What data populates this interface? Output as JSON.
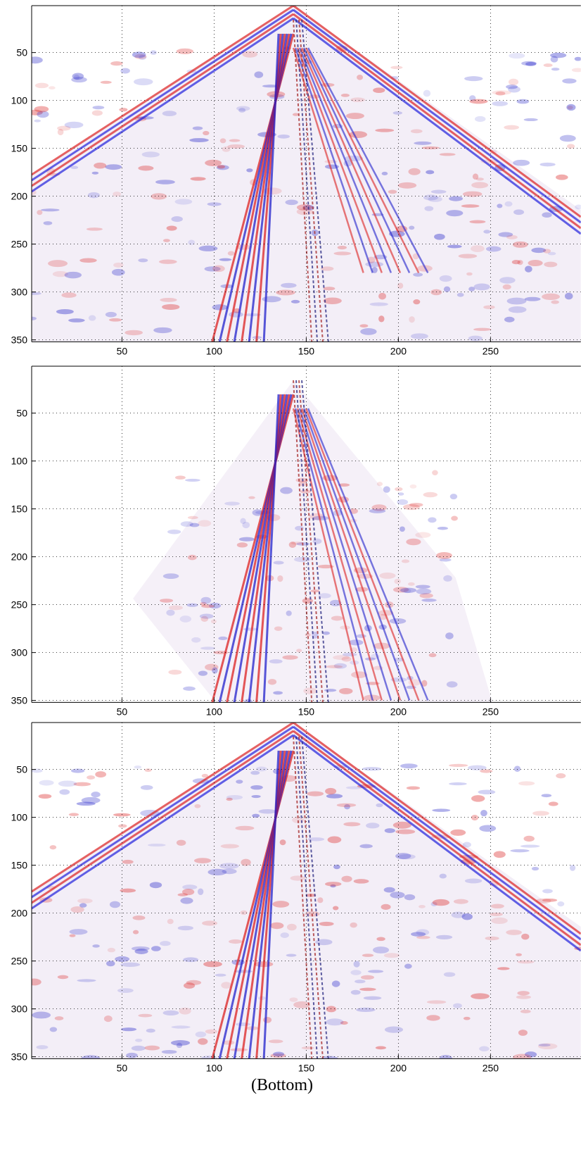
{
  "chart_data": [
    {
      "type": "heatmap",
      "xlim": [
        1,
        299
      ],
      "ylim": [
        1,
        352
      ],
      "xticks": [
        50,
        100,
        150,
        200,
        250
      ],
      "yticks": [
        50,
        100,
        150,
        200,
        250,
        300,
        350
      ],
      "grid": true
    },
    {
      "type": "heatmap",
      "xlim": [
        1,
        299
      ],
      "ylim": [
        1,
        352
      ],
      "xticks": [
        50,
        100,
        150,
        200,
        250
      ],
      "yticks": [
        50,
        100,
        150,
        200,
        250,
        300,
        350
      ],
      "grid": true
    },
    {
      "type": "heatmap",
      "xlim": [
        1,
        299
      ],
      "ylim": [
        1,
        352
      ],
      "xticks": [
        50,
        100,
        150,
        200,
        250
      ],
      "yticks": [
        50,
        100,
        150,
        200,
        250,
        300,
        350
      ],
      "grid": true
    }
  ],
  "caption": "(Bottom)"
}
